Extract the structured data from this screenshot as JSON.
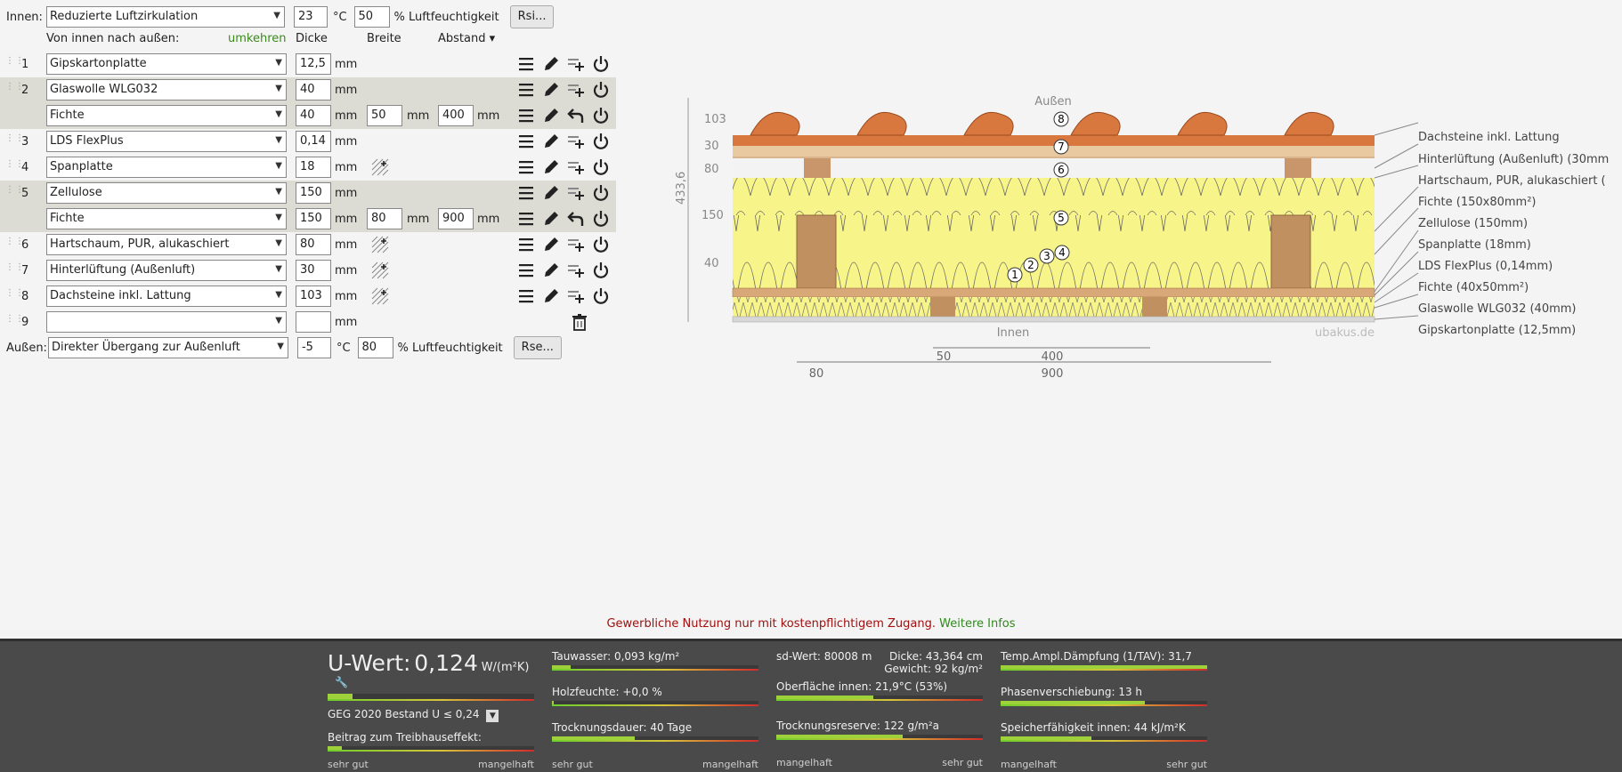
{
  "top": {
    "innen_label": "Innen:",
    "innen_select": "Reduzierte Luftzirkulation",
    "temp": "23",
    "temp_unit": "°C",
    "humidity": "50",
    "humidity_label": "% Luftfeuchtigkeit",
    "rsi_button": "Rsi..."
  },
  "headers": {
    "direction": "Von innen nach außen:",
    "reverse": "umkehren",
    "dicke": "Dicke",
    "breite": "Breite",
    "abstand": "Abstand ▾"
  },
  "unit_mm": "mm",
  "rows": [
    {
      "num": "1",
      "material": "Gipskartonplatte",
      "thickness": "12,5"
    },
    {
      "num": "2",
      "material": "Glaswolle WLG032",
      "thickness": "40"
    },
    {
      "num": "",
      "material": "Fichte",
      "thickness": "40",
      "width": "50",
      "spacing": "400"
    },
    {
      "num": "3",
      "material": "LDS FlexPlus",
      "thickness": "0,14"
    },
    {
      "num": "4",
      "material": "Spanplatte",
      "thickness": "18"
    },
    {
      "num": "5",
      "material": "Zellulose",
      "thickness": "150"
    },
    {
      "num": "",
      "material": "Fichte",
      "thickness": "150",
      "width": "80",
      "spacing": "900"
    },
    {
      "num": "6",
      "material": "Hartschaum, PUR, alukaschiert",
      "thickness": "80"
    },
    {
      "num": "7",
      "material": "Hinterlüftung (Außenluft)",
      "thickness": "30"
    },
    {
      "num": "8",
      "material": "Dachsteine inkl. Lattung",
      "thickness": "103"
    },
    {
      "num": "9",
      "material": "",
      "thickness": ""
    }
  ],
  "outer": {
    "label": "Außen:",
    "select": "Direkter Übergang zur Außenluft",
    "temp": "-5",
    "temp_unit": "°C",
    "humidity": "80",
    "humidity_label": "% Luftfeuchtigkeit",
    "rse_button": "Rse..."
  },
  "diagram": {
    "top_label": "Außen",
    "bottom_label": "Innen",
    "watermark": "ubakus.de",
    "total_dim": "433,6",
    "dims": [
      "103",
      "30",
      "80",
      "150",
      "40"
    ],
    "bottom_dims": {
      "a": "50",
      "b": "400",
      "c": "80",
      "d": "900"
    },
    "legend": [
      "Dachsteine inkl. Lattung",
      "Hinterlüftung (Außenluft) (30mm",
      "Hartschaum, PUR, alukaschiert (",
      "Fichte (150x80mm²)",
      "Zellulose (150mm)",
      "Spanplatte (18mm)",
      "LDS FlexPlus (0,14mm)",
      "Fichte (40x50mm²)",
      "Glaswolle WLG032 (40mm)",
      "Gipskartonplatte (12,5mm)"
    ],
    "markers": [
      "1",
      "2",
      "3",
      "4",
      "5",
      "6",
      "7",
      "8"
    ]
  },
  "notice": {
    "text": "Gewerbliche Nutzung nur mit kostenpflichtigem Zugang.",
    "link": "Weitere Infos"
  },
  "results": {
    "u_label": "U-Wert:",
    "u_value": "0,124",
    "u_unit": "W/(m²K)",
    "geg": "GEG 2020 Bestand U ≤ 0,24",
    "treibhaus": "Beitrag zum Treibhauseffekt:",
    "tauwasser": "Tauwasser: 0,093 kg/m²",
    "holzfeuchte": "Holzfeuchte: +0,0 %",
    "trocknungsdauer": "Trocknungsdauer: 40 Tage",
    "sd": "sd-Wert: 80008 m",
    "dicke": "Dicke: 43,364 cm",
    "gewicht": "Gewicht: 92 kg/m²",
    "oberflaeche": "Oberfläche innen: 21,9°C (53%)",
    "trocknungsreserve": "Trocknungsreserve: 122 g/m²a",
    "daempfung": "Temp.Ampl.Dämpfung (1/TAV): 31,7",
    "phase": "Phasenverschiebung: 13 h",
    "speicher": "Speicherfähigkeit innen: 44 kJ/m²K",
    "scale_good": "sehr gut",
    "scale_bad": "mangelhaft",
    "levels": {
      "u": 0.12,
      "treibhaus": 0.07,
      "tauwasser": 0.09,
      "holzfeuchte": 0.01,
      "trocknungsdauer": 0.4,
      "oberflaeche": 0.47,
      "trocknungsreserve": 0.61,
      "daempfung": 1.0,
      "phase": 0.7,
      "speicher": 0.44
    }
  }
}
